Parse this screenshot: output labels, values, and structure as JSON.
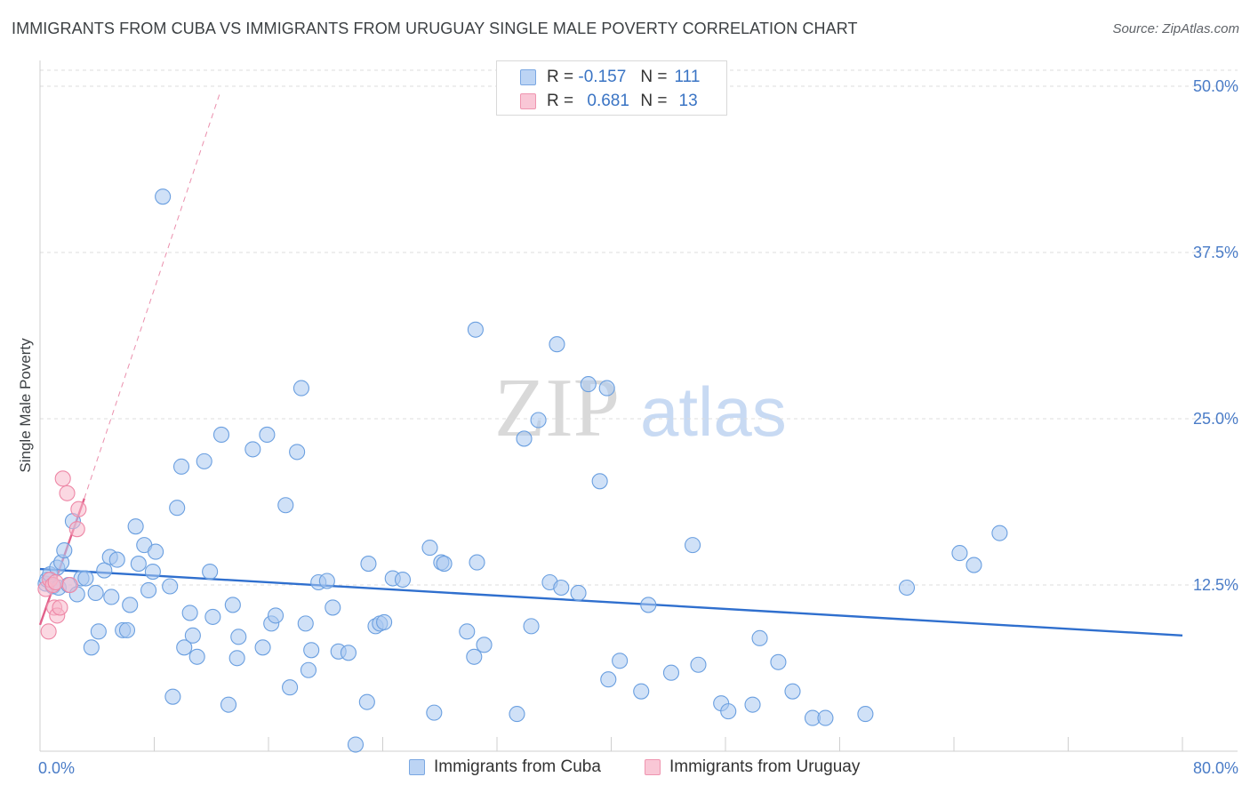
{
  "title": "IMMIGRANTS FROM CUBA VS IMMIGRANTS FROM URUGUAY SINGLE MALE POVERTY CORRELATION CHART",
  "source": "Source: ZipAtlas.com",
  "watermark": {
    "zip": "ZIP",
    "atlas": "atlas"
  },
  "legend": {
    "r_label": "R =",
    "n_label": "N =",
    "rows": [
      {
        "r": "-0.157",
        "n": "111"
      },
      {
        "r": "0.681",
        "n": "13"
      }
    ]
  },
  "chart_data": {
    "type": "scatter",
    "title": "IMMIGRANTS FROM CUBA VS IMMIGRANTS FROM URUGUAY SINGLE MALE POVERTY CORRELATION CHART",
    "xlabel": "",
    "ylabel": "Single Male Poverty",
    "xlim": [
      0,
      80
    ],
    "ylim": [
      0,
      50
    ],
    "x_tick_labels": [
      "0.0%",
      "80.0%"
    ],
    "y_ticks": [
      12.5,
      25.0,
      37.5,
      50.0
    ],
    "y_tick_labels": [
      "12.5%",
      "25.0%",
      "37.5%",
      "50.0%"
    ],
    "grid": "horizontal dashed",
    "series": [
      {
        "name": "Immigrants from Cuba",
        "color": "#a9c8f0",
        "edge": "#6a9fe0",
        "line_color": "#2f6fce",
        "trend": {
          "x0": 0,
          "y0": 13.7,
          "x1": 80,
          "y1": 8.7
        },
        "points": [
          [
            0.4,
            12.6
          ],
          [
            0.5,
            12.9
          ],
          [
            0.7,
            13.3
          ],
          [
            0.9,
            12.4
          ],
          [
            1.2,
            13.8
          ],
          [
            1.3,
            12.3
          ],
          [
            1.5,
            14.2
          ],
          [
            1.7,
            15.1
          ],
          [
            2.0,
            12.5
          ],
          [
            2.3,
            17.3
          ],
          [
            2.6,
            11.8
          ],
          [
            2.9,
            13.0
          ],
          [
            3.2,
            13.0
          ],
          [
            3.6,
            7.8
          ],
          [
            3.9,
            11.9
          ],
          [
            4.1,
            9.0
          ],
          [
            4.5,
            13.6
          ],
          [
            4.9,
            14.6
          ],
          [
            5.0,
            11.6
          ],
          [
            5.4,
            14.4
          ],
          [
            5.8,
            9.1
          ],
          [
            6.1,
            9.1
          ],
          [
            6.3,
            11.0
          ],
          [
            6.7,
            16.9
          ],
          [
            6.9,
            14.1
          ],
          [
            7.3,
            15.5
          ],
          [
            7.6,
            12.1
          ],
          [
            7.9,
            13.5
          ],
          [
            8.1,
            15.0
          ],
          [
            8.6,
            41.7
          ],
          [
            9.1,
            12.4
          ],
          [
            9.3,
            4.1
          ],
          [
            9.6,
            18.3
          ],
          [
            9.9,
            21.4
          ],
          [
            10.1,
            7.8
          ],
          [
            10.5,
            10.4
          ],
          [
            10.7,
            8.7
          ],
          [
            11.0,
            7.1
          ],
          [
            11.5,
            21.8
          ],
          [
            11.9,
            13.5
          ],
          [
            12.1,
            10.1
          ],
          [
            12.7,
            23.8
          ],
          [
            13.2,
            3.5
          ],
          [
            13.5,
            11.0
          ],
          [
            13.8,
            7.0
          ],
          [
            13.9,
            8.6
          ],
          [
            14.9,
            22.7
          ],
          [
            15.6,
            7.8
          ],
          [
            15.9,
            23.8
          ],
          [
            16.2,
            9.6
          ],
          [
            16.5,
            10.2
          ],
          [
            17.2,
            18.5
          ],
          [
            17.5,
            4.8
          ],
          [
            18.0,
            22.5
          ],
          [
            18.3,
            27.3
          ],
          [
            18.6,
            9.6
          ],
          [
            18.8,
            6.1
          ],
          [
            19.0,
            7.6
          ],
          [
            19.5,
            12.7
          ],
          [
            20.1,
            12.8
          ],
          [
            20.5,
            10.8
          ],
          [
            20.9,
            7.5
          ],
          [
            21.6,
            7.4
          ],
          [
            22.1,
            0.5
          ],
          [
            22.9,
            3.7
          ],
          [
            23.0,
            14.1
          ],
          [
            23.5,
            9.4
          ],
          [
            23.8,
            9.6
          ],
          [
            24.1,
            9.7
          ],
          [
            24.7,
            13.0
          ],
          [
            25.4,
            12.9
          ],
          [
            27.3,
            15.3
          ],
          [
            27.6,
            2.9
          ],
          [
            28.1,
            14.2
          ],
          [
            28.3,
            14.1
          ],
          [
            29.9,
            9.0
          ],
          [
            30.4,
            7.1
          ],
          [
            30.5,
            31.7
          ],
          [
            30.6,
            14.2
          ],
          [
            31.1,
            8.0
          ],
          [
            33.4,
            2.8
          ],
          [
            33.9,
            23.5
          ],
          [
            34.4,
            9.4
          ],
          [
            34.9,
            24.9
          ],
          [
            35.7,
            12.7
          ],
          [
            36.2,
            30.6
          ],
          [
            36.5,
            12.3
          ],
          [
            37.7,
            11.9
          ],
          [
            38.4,
            27.6
          ],
          [
            39.2,
            20.3
          ],
          [
            39.7,
            27.3
          ],
          [
            39.8,
            5.4
          ],
          [
            40.6,
            6.8
          ],
          [
            42.1,
            4.5
          ],
          [
            42.6,
            11.0
          ],
          [
            44.2,
            5.9
          ],
          [
            45.7,
            15.5
          ],
          [
            46.1,
            6.5
          ],
          [
            47.7,
            3.6
          ],
          [
            48.2,
            3.0
          ],
          [
            49.9,
            3.5
          ],
          [
            50.4,
            8.5
          ],
          [
            51.7,
            6.7
          ],
          [
            52.7,
            4.5
          ],
          [
            54.1,
            2.5
          ],
          [
            55.0,
            2.5
          ],
          [
            57.8,
            2.8
          ],
          [
            60.7,
            12.3
          ],
          [
            64.4,
            14.9
          ],
          [
            65.4,
            14.0
          ],
          [
            67.2,
            16.4
          ]
        ]
      },
      {
        "name": "Immigrants from Uruguay",
        "color": "#f7b8cb",
        "edge": "#ee87a6",
        "line_color": "#e2608a",
        "trend": {
          "x0": 0,
          "y0": 9.5,
          "x1": 3.1,
          "y1": 19.0
        },
        "trend_ext": {
          "x0": 3.1,
          "y0": 19.0,
          "x1": 12.6,
          "y1": 49.5
        },
        "points": [
          [
            0.4,
            12.2
          ],
          [
            0.6,
            9.0
          ],
          [
            0.7,
            12.9
          ],
          [
            0.9,
            12.5
          ],
          [
            1.0,
            10.8
          ],
          [
            1.1,
            12.7
          ],
          [
            1.2,
            10.2
          ],
          [
            1.4,
            10.8
          ],
          [
            1.6,
            20.5
          ],
          [
            1.9,
            19.4
          ],
          [
            2.1,
            12.5
          ],
          [
            2.6,
            16.7
          ],
          [
            2.7,
            18.2
          ]
        ]
      }
    ]
  }
}
